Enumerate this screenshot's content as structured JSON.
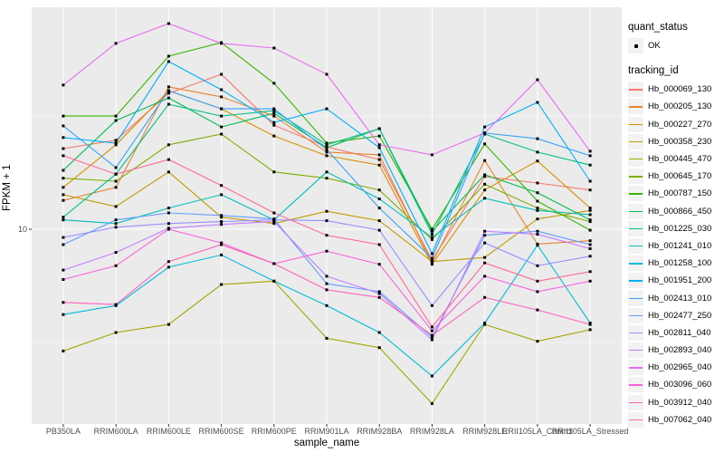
{
  "figure": {
    "y_axis": {
      "tick_label": "10",
      "scale": "log10"
    },
    "legend": {
      "quant_status_title": "quant_status",
      "ok_label": "OK",
      "tracking_id_title": "tracking_id"
    },
    "panel_bg": "#ebebeb",
    "gridline_color": "#ffffff",
    "marker_color": "#000000",
    "tick_text_color": "#4d4d4d"
  },
  "chart_data": {
    "type": "line",
    "title": "",
    "xlabel": "sample_name",
    "ylabel": "FPKM + 1",
    "y_scale": "log10",
    "y_ticks": [
      10
    ],
    "y_range_approx": [
      1.5,
      95
    ],
    "grid": true,
    "legend_position": "right",
    "marker": "small-black-square",
    "x_categories": [
      "PB350LA",
      "RRIM600LA",
      "RRIM600LE",
      "RRIM600SE",
      "RRIM600PE",
      "RRIM901LA",
      "RRIM928BA",
      "RRIM928LA",
      "RRIM928LE",
      "RRII105LA_Control",
      "RRII105LA_Stressed"
    ],
    "series": [
      {
        "name": "Hb_000069_130",
        "color": "#F8766D",
        "values": [
          22.7,
          24.7,
          39.8,
          48.3,
          28.8,
          23.1,
          20.3,
          7.3,
          17.1,
          16.0,
          14.9
        ]
      },
      {
        "name": "Hb_000205_130",
        "color": "#EA8331",
        "values": [
          13.4,
          15.3,
          42.5,
          38.4,
          31.6,
          21.9,
          21.3,
          7.1,
          20.1,
          8.6,
          8.9
        ]
      },
      {
        "name": "Hb_000227_270",
        "color": "#D89000",
        "values": [
          15.3,
          23.6,
          40.9,
          34.0,
          25.8,
          21.1,
          19.2,
          7.0,
          14.9,
          20.0,
          12.4
        ]
      },
      {
        "name": "Hb_000358_230",
        "color": "#C09B00",
        "values": [
          14.2,
          12.6,
          17.9,
          11.3,
          10.6,
          12.0,
          10.9,
          7.2,
          7.5,
          11.1,
          12.1
        ]
      },
      {
        "name": "Hb_000445_470",
        "color": "#A3A500",
        "values": [
          2.9,
          3.5,
          3.8,
          5.7,
          5.9,
          3.3,
          3.0,
          1.7,
          3.8,
          3.2,
          3.6
        ]
      },
      {
        "name": "Hb_000645_170",
        "color": "#7CAE00",
        "values": [
          16.8,
          16.3,
          23.6,
          26.3,
          17.9,
          16.8,
          14.9,
          9.0,
          15.8,
          12.4,
          10.8
        ]
      },
      {
        "name": "Hb_000787_150",
        "color": "#39B600",
        "values": [
          31.6,
          31.6,
          58.1,
          66.7,
          44.1,
          24.0,
          25.8,
          10.0,
          23.8,
          13.3,
          9.9
        ]
      },
      {
        "name": "Hb_000866_450",
        "color": "#00BB4E",
        "values": [
          18.2,
          30.2,
          38.0,
          28.3,
          32.5,
          22.9,
          27.8,
          9.8,
          17.4,
          14.5,
          11.0
        ]
      },
      {
        "name": "Hb_001225_030",
        "color": "#00C087",
        "values": [
          11.3,
          17.5,
          35.6,
          31.6,
          33.4,
          23.6,
          27.8,
          9.5,
          26.3,
          21.9,
          19.2
        ]
      },
      {
        "name": "Hb_001241_010",
        "color": "#00C0B8",
        "values": [
          11.0,
          10.6,
          12.4,
          14.2,
          11.0,
          17.9,
          13.6,
          9.2,
          13.7,
          12.1,
          11.6
        ]
      },
      {
        "name": "Hb_001258_100",
        "color": "#00BCD8",
        "values": [
          4.2,
          4.6,
          6.8,
          7.7,
          5.9,
          4.6,
          3.5,
          2.25,
          3.85,
          8.5,
          3.85
        ]
      },
      {
        "name": "Hb_001951_200",
        "color": "#00B0F6",
        "values": [
          25.4,
          24.0,
          55.0,
          41.3,
          29.6,
          34.0,
          22.9,
          7.8,
          28.3,
          36.3,
          16.3
        ]
      },
      {
        "name": "Hb_002413_010",
        "color": "#35A2FF",
        "values": [
          28.6,
          18.7,
          40.9,
          34.0,
          34.0,
          22.5,
          12.4,
          7.45,
          26.6,
          25.1,
          21.1
        ]
      },
      {
        "name": "Hb_002477_250",
        "color": "#619CFF",
        "values": [
          8.55,
          11.0,
          11.8,
          11.5,
          11.1,
          5.75,
          5.3,
          3.34,
          9.4,
          9.8,
          8.55
        ]
      },
      {
        "name": "Hb_002811_040",
        "color": "#9590FF",
        "values": [
          9.2,
          10.2,
          10.6,
          10.8,
          11.0,
          10.9,
          9.9,
          4.6,
          8.7,
          6.9,
          7.6
        ]
      },
      {
        "name": "Hb_002893_040",
        "color": "#C77CFF",
        "values": [
          6.6,
          7.9,
          10.1,
          10.5,
          10.8,
          6.2,
          5.2,
          3.25,
          9.8,
          9.5,
          8.2
        ]
      },
      {
        "name": "Hb_002965_040",
        "color": "#E76BF3",
        "values": [
          43.3,
          66.1,
          80.9,
          66.1,
          63.1,
          48.3,
          23.6,
          21.3,
          26.6,
          45.7,
          22.1
        ]
      },
      {
        "name": "Hb_003096_060",
        "color": "#FA62DB",
        "values": [
          6.0,
          6.9,
          10.0,
          8.7,
          7.05,
          8.0,
          7.0,
          3.56,
          6.2,
          5.3,
          5.9
        ]
      },
      {
        "name": "Hb_003912_040",
        "color": "#FF62BC",
        "values": [
          4.75,
          4.65,
          7.2,
          8.55,
          7.05,
          5.4,
          5.0,
          3.4,
          5.0,
          4.4,
          3.8
        ]
      },
      {
        "name": "Hb_007062_040",
        "color": "#FF6A98",
        "values": [
          21.1,
          17.5,
          20.3,
          15.6,
          11.8,
          9.4,
          8.55,
          3.7,
          7.1,
          5.9,
          6.5
        ]
      }
    ]
  }
}
